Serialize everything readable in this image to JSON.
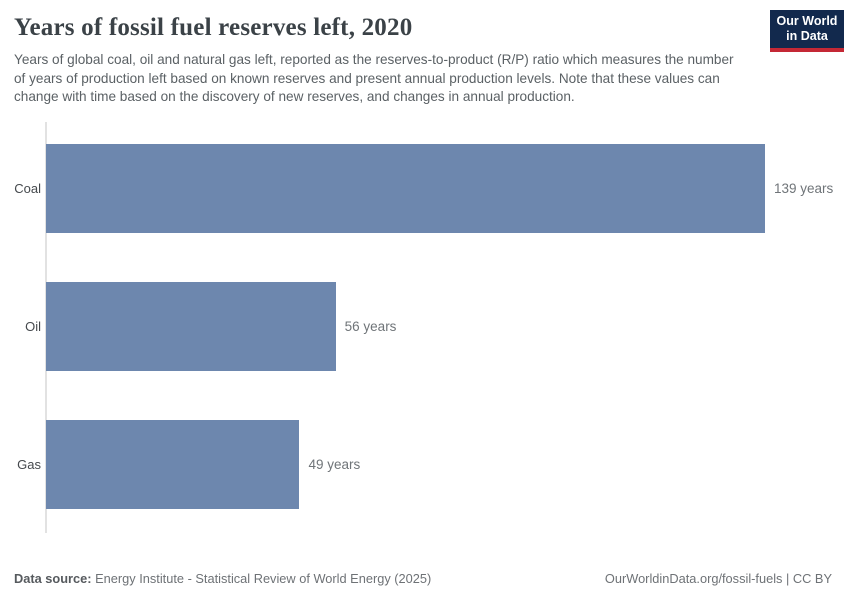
{
  "header": {
    "title": "Years of fossil fuel reserves left, 2020",
    "subtitle": "Years of global coal, oil and natural gas left, reported as the reserves-to-product (R/P) ratio which measures the number of years of production left based on known reserves and present annual production levels. Note that these values can change with time based on the discovery of new reserves, and changes in annual production."
  },
  "logo": {
    "line1": "Our World",
    "line2": "in Data",
    "bg_color": "#12294d",
    "accent_color": "#c42835"
  },
  "chart_data": {
    "type": "bar",
    "orientation": "horizontal",
    "title": "Years of fossil fuel reserves left, 2020",
    "categories": [
      "Coal",
      "Oil",
      "Gas"
    ],
    "values": [
      139,
      56,
      49
    ],
    "unit": "years",
    "value_labels": [
      "139 years",
      "56 years",
      "49 years"
    ],
    "xlim": [
      0,
      139
    ],
    "bar_color": "#6d87ae",
    "grid": false,
    "legend": "none"
  },
  "footer": {
    "datasource_label": "Data source:",
    "datasource_value": "Energy Institute - Statistical Review of World Energy (2025)",
    "link": "OurWorldinData.org/fossil-fuels | CC BY"
  }
}
